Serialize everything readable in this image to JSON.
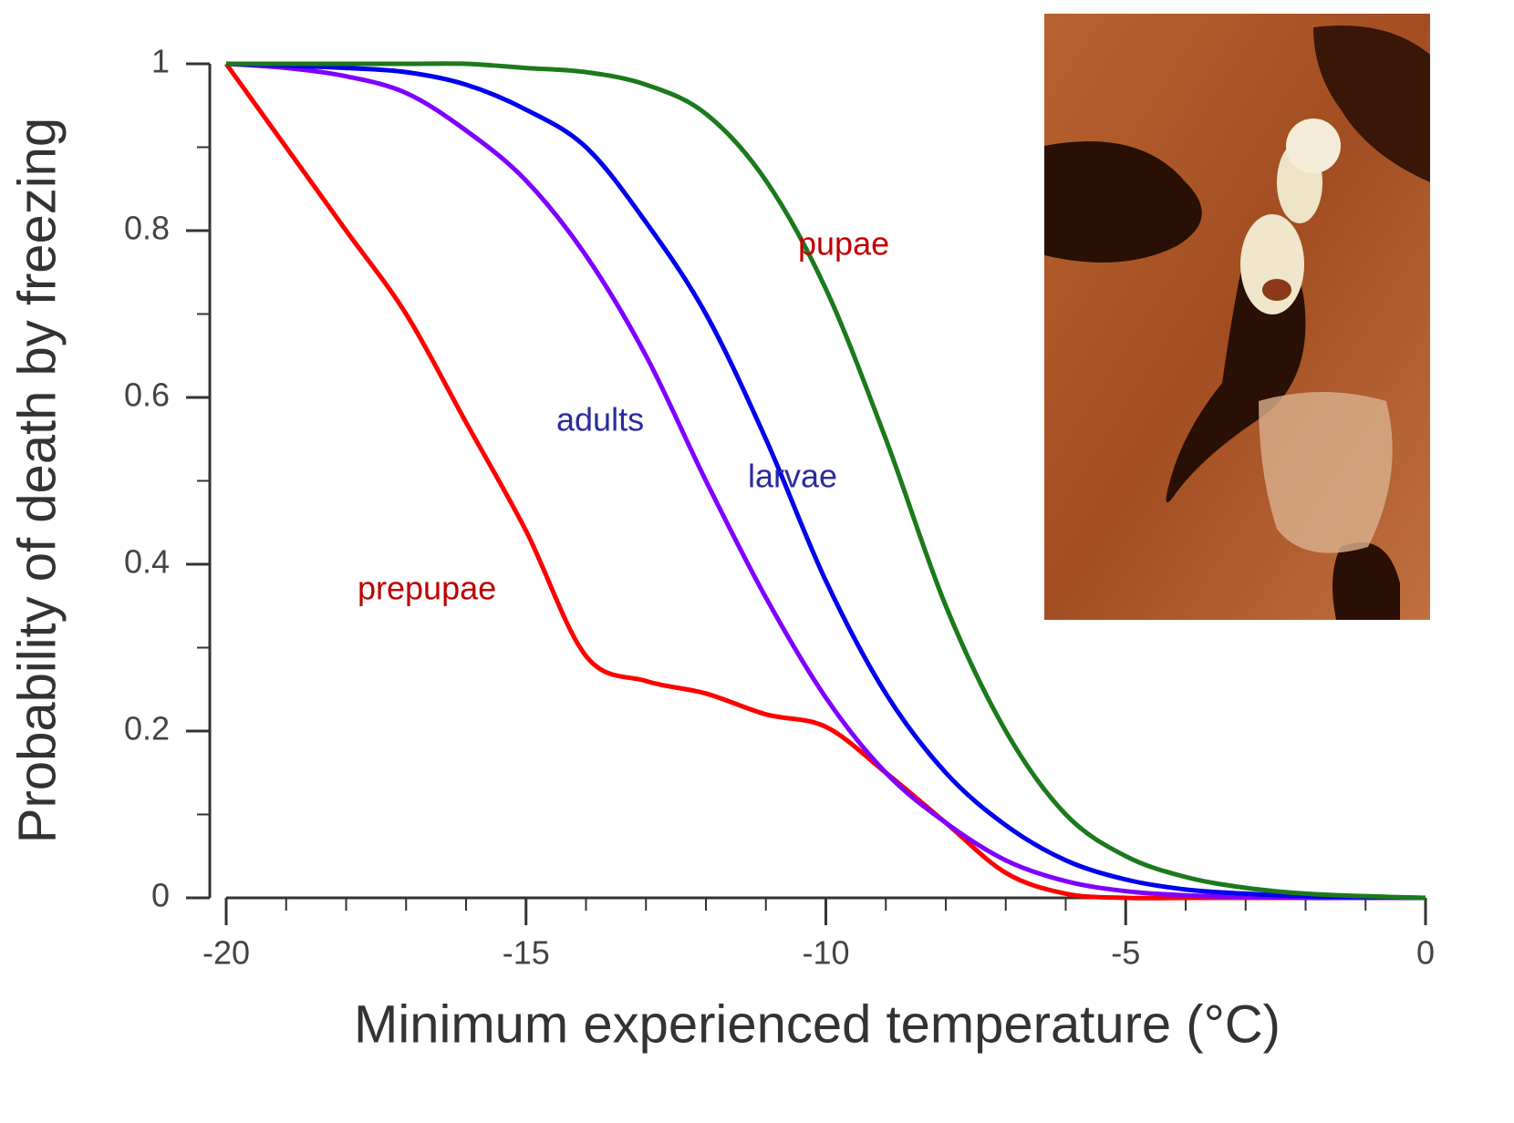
{
  "chart_data": {
    "type": "line",
    "x_label": "Minimum experienced temperature (°C)",
    "y_label": "Probability of death by freezing",
    "x": [
      -20,
      -19,
      -18,
      -17,
      -16,
      -15,
      -14,
      -13,
      -12,
      -11,
      -10,
      -9,
      -8,
      -7,
      -6,
      -5,
      -4,
      -3,
      -2,
      -1,
      0
    ],
    "series": [
      {
        "name": "pupae",
        "color": "#1b7a1b",
        "values": [
          1,
          1,
          1,
          1,
          1,
          0.995,
          0.99,
          0.975,
          0.94,
          0.86,
          0.73,
          0.55,
          0.35,
          0.2,
          0.1,
          0.05,
          0.025,
          0.012,
          0.005,
          0.002,
          0
        ]
      },
      {
        "name": "larvae",
        "color": "#0000ee",
        "values": [
          1,
          0.998,
          0.995,
          0.99,
          0.975,
          0.945,
          0.9,
          0.81,
          0.7,
          0.55,
          0.38,
          0.245,
          0.15,
          0.087,
          0.045,
          0.022,
          0.01,
          0.005,
          0.002,
          0.001,
          0
        ]
      },
      {
        "name": "adults",
        "color": "#8000ff",
        "values": [
          1,
          0.995,
          0.985,
          0.965,
          0.92,
          0.86,
          0.77,
          0.65,
          0.5,
          0.36,
          0.24,
          0.15,
          0.09,
          0.045,
          0.02,
          0.008,
          0.003,
          0.001,
          0,
          0,
          0
        ]
      },
      {
        "name": "prepupae",
        "color": "#ff0000",
        "values": [
          1,
          0.9,
          0.8,
          0.7,
          0.57,
          0.44,
          0.29,
          0.26,
          0.245,
          0.22,
          0.205,
          0.15,
          0.09,
          0.03,
          0.005,
          0,
          0,
          0,
          0,
          0,
          0
        ]
      }
    ],
    "annotations": [
      {
        "text": "pupae",
        "color": "#c00000"
      },
      {
        "text": "adults",
        "color": "#2b2b9e"
      },
      {
        "text": "larvae",
        "color": "#2b2b9e"
      },
      {
        "text": "prepupae",
        "color": "#c00000"
      }
    ],
    "xlim": [
      -20,
      0
    ],
    "ylim": [
      0,
      1
    ],
    "xticks": [
      -20,
      -15,
      -10,
      -5,
      0
    ],
    "yticks": [
      0,
      0.2,
      0.4,
      0.6,
      0.8,
      1
    ],
    "x_minor_ticks": [
      -19,
      -18,
      -17,
      -16,
      -14,
      -13,
      -12,
      -11,
      -9,
      -8,
      -7,
      -6,
      -4,
      -3,
      -2,
      -1
    ],
    "y_minor_ticks": [
      0.1,
      0.3,
      0.5,
      0.7,
      0.9
    ]
  }
}
